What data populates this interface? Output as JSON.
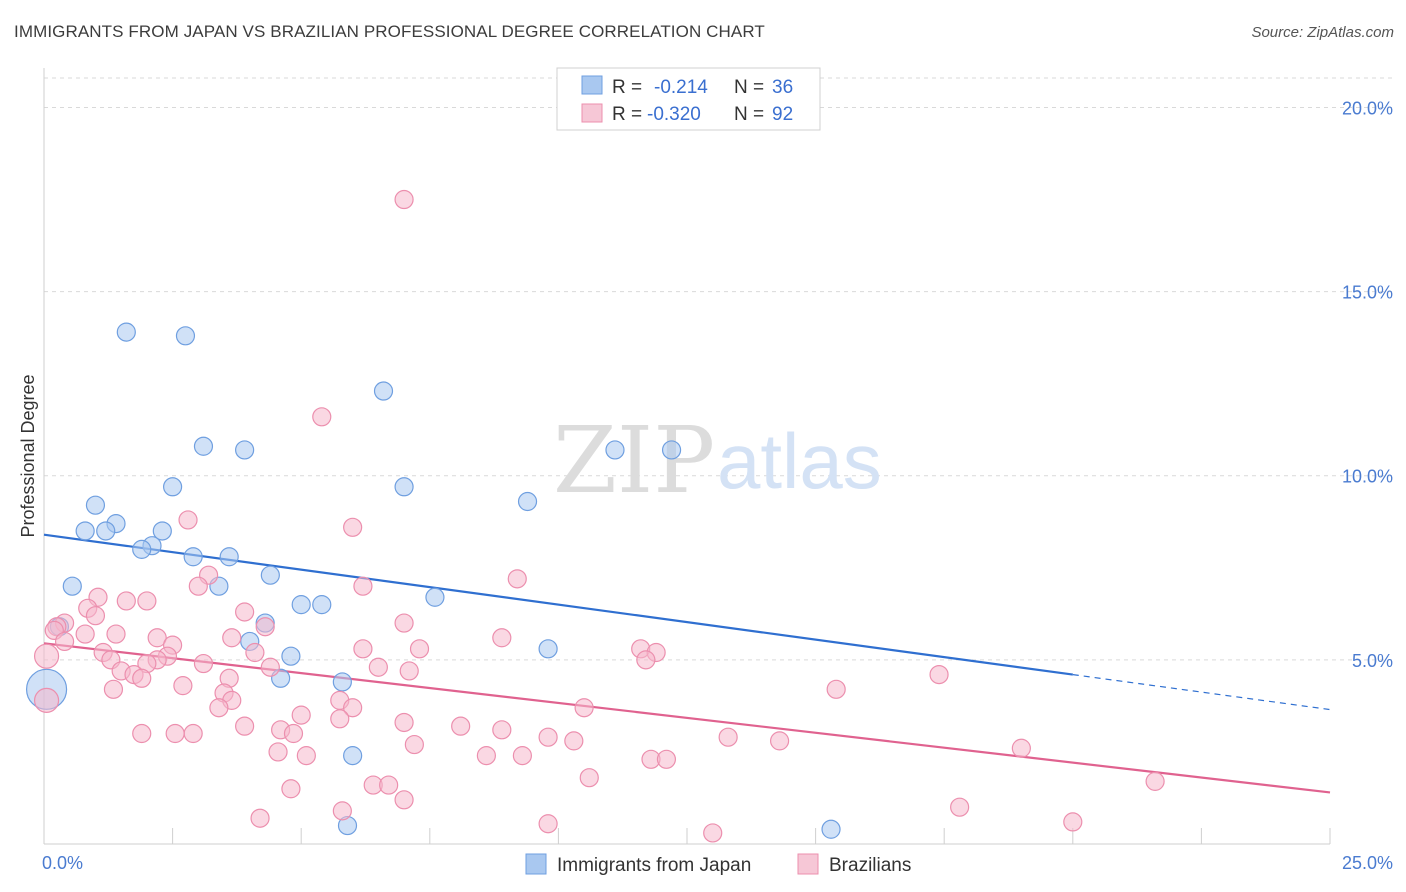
{
  "title": "IMMIGRANTS FROM JAPAN VS BRAZILIAN PROFESSIONAL DEGREE CORRELATION CHART",
  "source": "Source: ZipAtlas.com",
  "watermark": {
    "zip": "ZIP",
    "atlas": "atlas"
  },
  "colors": {
    "japan_fill": "#a9c8f0",
    "japan_stroke": "#6f9fe0",
    "japan_line": "#2f6fd0",
    "brazil_fill": "#f6b8cc",
    "brazil_stroke": "#ec8fae",
    "brazil_line": "#e0628f",
    "grid": "#d9d9d9",
    "tick": "#4a7bd0"
  },
  "legend": {
    "rows": [
      {
        "r_label": "R =",
        "r_value": "-0.214",
        "n_label": "N =",
        "n_value": "36"
      },
      {
        "r_label": "R =",
        "r_value": "-0.320",
        "n_label": "N =",
        "n_value": "92"
      }
    ]
  },
  "chart_data": {
    "type": "scatter",
    "title": "IMMIGRANTS FROM JAPAN VS BRAZILIAN PROFESSIONAL DEGREE CORRELATION CHART",
    "xlabel": "",
    "ylabel": "Professional Degree",
    "xlim": [
      0,
      25
    ],
    "ylim": [
      0,
      20.8
    ],
    "x_tick_labels": [
      "0.0%",
      "25.0%"
    ],
    "y_ticks": [
      5,
      10,
      15,
      20
    ],
    "y_tick_labels": [
      "5.0%",
      "10.0%",
      "15.0%",
      "20.0%"
    ],
    "grid": true,
    "legend_position": "bottom-center",
    "series": [
      {
        "name": "Immigrants from Japan",
        "trend": {
          "x0": 0,
          "y0": 8.4,
          "x1": 20,
          "y1": 4.6,
          "dashed_to_x": 25,
          "dashed_to_y": 3.65
        },
        "points": [
          [
            1.6,
            13.9
          ],
          [
            2.75,
            13.8
          ],
          [
            6.6,
            12.3
          ],
          [
            3.1,
            10.8
          ],
          [
            3.9,
            10.7
          ],
          [
            11.1,
            10.7
          ],
          [
            12.2,
            10.7
          ],
          [
            2.5,
            9.7
          ],
          [
            7.0,
            9.7
          ],
          [
            9.4,
            9.3
          ],
          [
            1.0,
            9.2
          ],
          [
            1.4,
            8.7
          ],
          [
            0.8,
            8.5
          ],
          [
            1.2,
            8.5
          ],
          [
            2.3,
            8.5
          ],
          [
            2.1,
            8.1
          ],
          [
            1.9,
            8.0
          ],
          [
            2.9,
            7.8
          ],
          [
            3.6,
            7.8
          ],
          [
            4.4,
            7.3
          ],
          [
            0.55,
            7.0
          ],
          [
            3.4,
            7.0
          ],
          [
            7.6,
            6.7
          ],
          [
            5.0,
            6.5
          ],
          [
            5.4,
            6.5
          ],
          [
            4.3,
            6.0
          ],
          [
            0.3,
            5.9
          ],
          [
            4.0,
            5.5
          ],
          [
            9.8,
            5.3
          ],
          [
            4.8,
            5.1
          ],
          [
            4.6,
            4.5
          ],
          [
            5.8,
            4.4
          ],
          [
            0.05,
            4.2
          ],
          [
            6.0,
            2.4
          ],
          [
            5.9,
            0.5
          ],
          [
            15.3,
            0.4
          ]
        ],
        "sizes_note": "one large point at x≈0.05"
      },
      {
        "name": "Brazilians",
        "trend": {
          "x0": 0,
          "y0": 5.45,
          "x1": 25,
          "y1": 1.4
        },
        "points": [
          [
            7.0,
            17.5
          ],
          [
            5.4,
            11.6
          ],
          [
            6.0,
            8.6
          ],
          [
            2.8,
            8.8
          ],
          [
            9.2,
            7.2
          ],
          [
            3.2,
            7.3
          ],
          [
            3.0,
            7.0
          ],
          [
            6.2,
            7.0
          ],
          [
            1.05,
            6.7
          ],
          [
            1.6,
            6.6
          ],
          [
            2.0,
            6.6
          ],
          [
            0.85,
            6.4
          ],
          [
            1.0,
            6.2
          ],
          [
            3.9,
            6.3
          ],
          [
            0.4,
            6.0
          ],
          [
            0.25,
            5.9
          ],
          [
            4.3,
            5.9
          ],
          [
            7.0,
            6.0
          ],
          [
            0.2,
            5.8
          ],
          [
            0.8,
            5.7
          ],
          [
            1.4,
            5.7
          ],
          [
            2.2,
            5.6
          ],
          [
            3.65,
            5.6
          ],
          [
            8.9,
            5.6
          ],
          [
            0.4,
            5.5
          ],
          [
            2.5,
            5.4
          ],
          [
            6.2,
            5.3
          ],
          [
            7.3,
            5.3
          ],
          [
            11.6,
            5.3
          ],
          [
            1.15,
            5.2
          ],
          [
            2.4,
            5.1
          ],
          [
            4.1,
            5.2
          ],
          [
            11.9,
            5.2
          ],
          [
            1.3,
            5.0
          ],
          [
            2.2,
            5.0
          ],
          [
            2.0,
            4.9
          ],
          [
            11.7,
            5.0
          ],
          [
            0.05,
            5.1
          ],
          [
            3.1,
            4.9
          ],
          [
            6.5,
            4.8
          ],
          [
            7.1,
            4.7
          ],
          [
            1.5,
            4.7
          ],
          [
            4.4,
            4.8
          ],
          [
            1.75,
            4.6
          ],
          [
            1.9,
            4.5
          ],
          [
            3.6,
            4.5
          ],
          [
            17.4,
            4.6
          ],
          [
            1.35,
            4.2
          ],
          [
            2.7,
            4.3
          ],
          [
            3.5,
            4.1
          ],
          [
            15.4,
            4.2
          ],
          [
            0.05,
            3.9
          ],
          [
            3.65,
            3.9
          ],
          [
            5.75,
            3.9
          ],
          [
            3.4,
            3.7
          ],
          [
            6.0,
            3.7
          ],
          [
            10.5,
            3.7
          ],
          [
            5.0,
            3.5
          ],
          [
            5.75,
            3.4
          ],
          [
            7.0,
            3.3
          ],
          [
            8.1,
            3.2
          ],
          [
            3.9,
            3.2
          ],
          [
            8.9,
            3.1
          ],
          [
            4.6,
            3.1
          ],
          [
            2.9,
            3.0
          ],
          [
            2.55,
            3.0
          ],
          [
            1.9,
            3.0
          ],
          [
            4.85,
            3.0
          ],
          [
            9.8,
            2.9
          ],
          [
            10.3,
            2.8
          ],
          [
            13.3,
            2.9
          ],
          [
            14.3,
            2.8
          ],
          [
            7.2,
            2.7
          ],
          [
            4.55,
            2.5
          ],
          [
            5.1,
            2.4
          ],
          [
            8.6,
            2.4
          ],
          [
            9.3,
            2.4
          ],
          [
            11.8,
            2.3
          ],
          [
            12.1,
            2.3
          ],
          [
            19.0,
            2.6
          ],
          [
            10.6,
            1.8
          ],
          [
            21.6,
            1.7
          ],
          [
            6.4,
            1.6
          ],
          [
            6.7,
            1.6
          ],
          [
            4.8,
            1.5
          ],
          [
            7.0,
            1.2
          ],
          [
            5.8,
            0.9
          ],
          [
            17.8,
            1.0
          ],
          [
            4.2,
            0.7
          ],
          [
            9.8,
            0.55
          ],
          [
            20.0,
            0.6
          ],
          [
            13.0,
            0.3
          ]
        ]
      }
    ]
  },
  "bottom_legend": {
    "items": [
      "Immigrants from Japan",
      "Brazilians"
    ]
  }
}
